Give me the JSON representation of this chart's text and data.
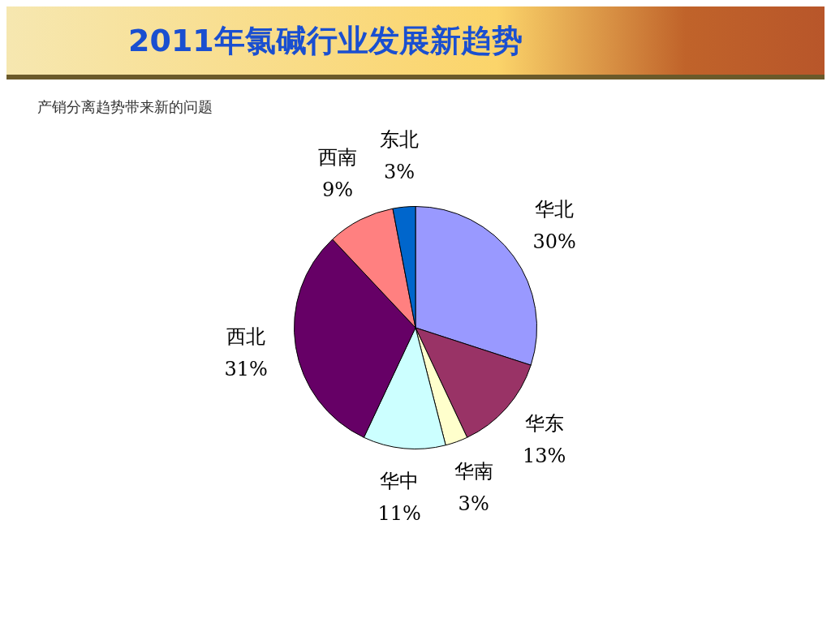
{
  "chart_data": {
    "type": "pie",
    "title": "2011年氯碱行业发展新趋势",
    "subtitle": "产销分离趋势带来新的问题",
    "categories": [
      "华北",
      "华东",
      "华南",
      "华中",
      "西北",
      "西南",
      "东北"
    ],
    "values": [
      30,
      13,
      3,
      11,
      31,
      9,
      3
    ],
    "value_labels": [
      "30%",
      "13%",
      "3%",
      "11%",
      "31%",
      "9%",
      "3%"
    ],
    "colors": [
      "#9999ff",
      "#993366",
      "#ffffcc",
      "#ccffff",
      "#660066",
      "#ff8080",
      "#0066cc"
    ],
    "legend": false
  }
}
